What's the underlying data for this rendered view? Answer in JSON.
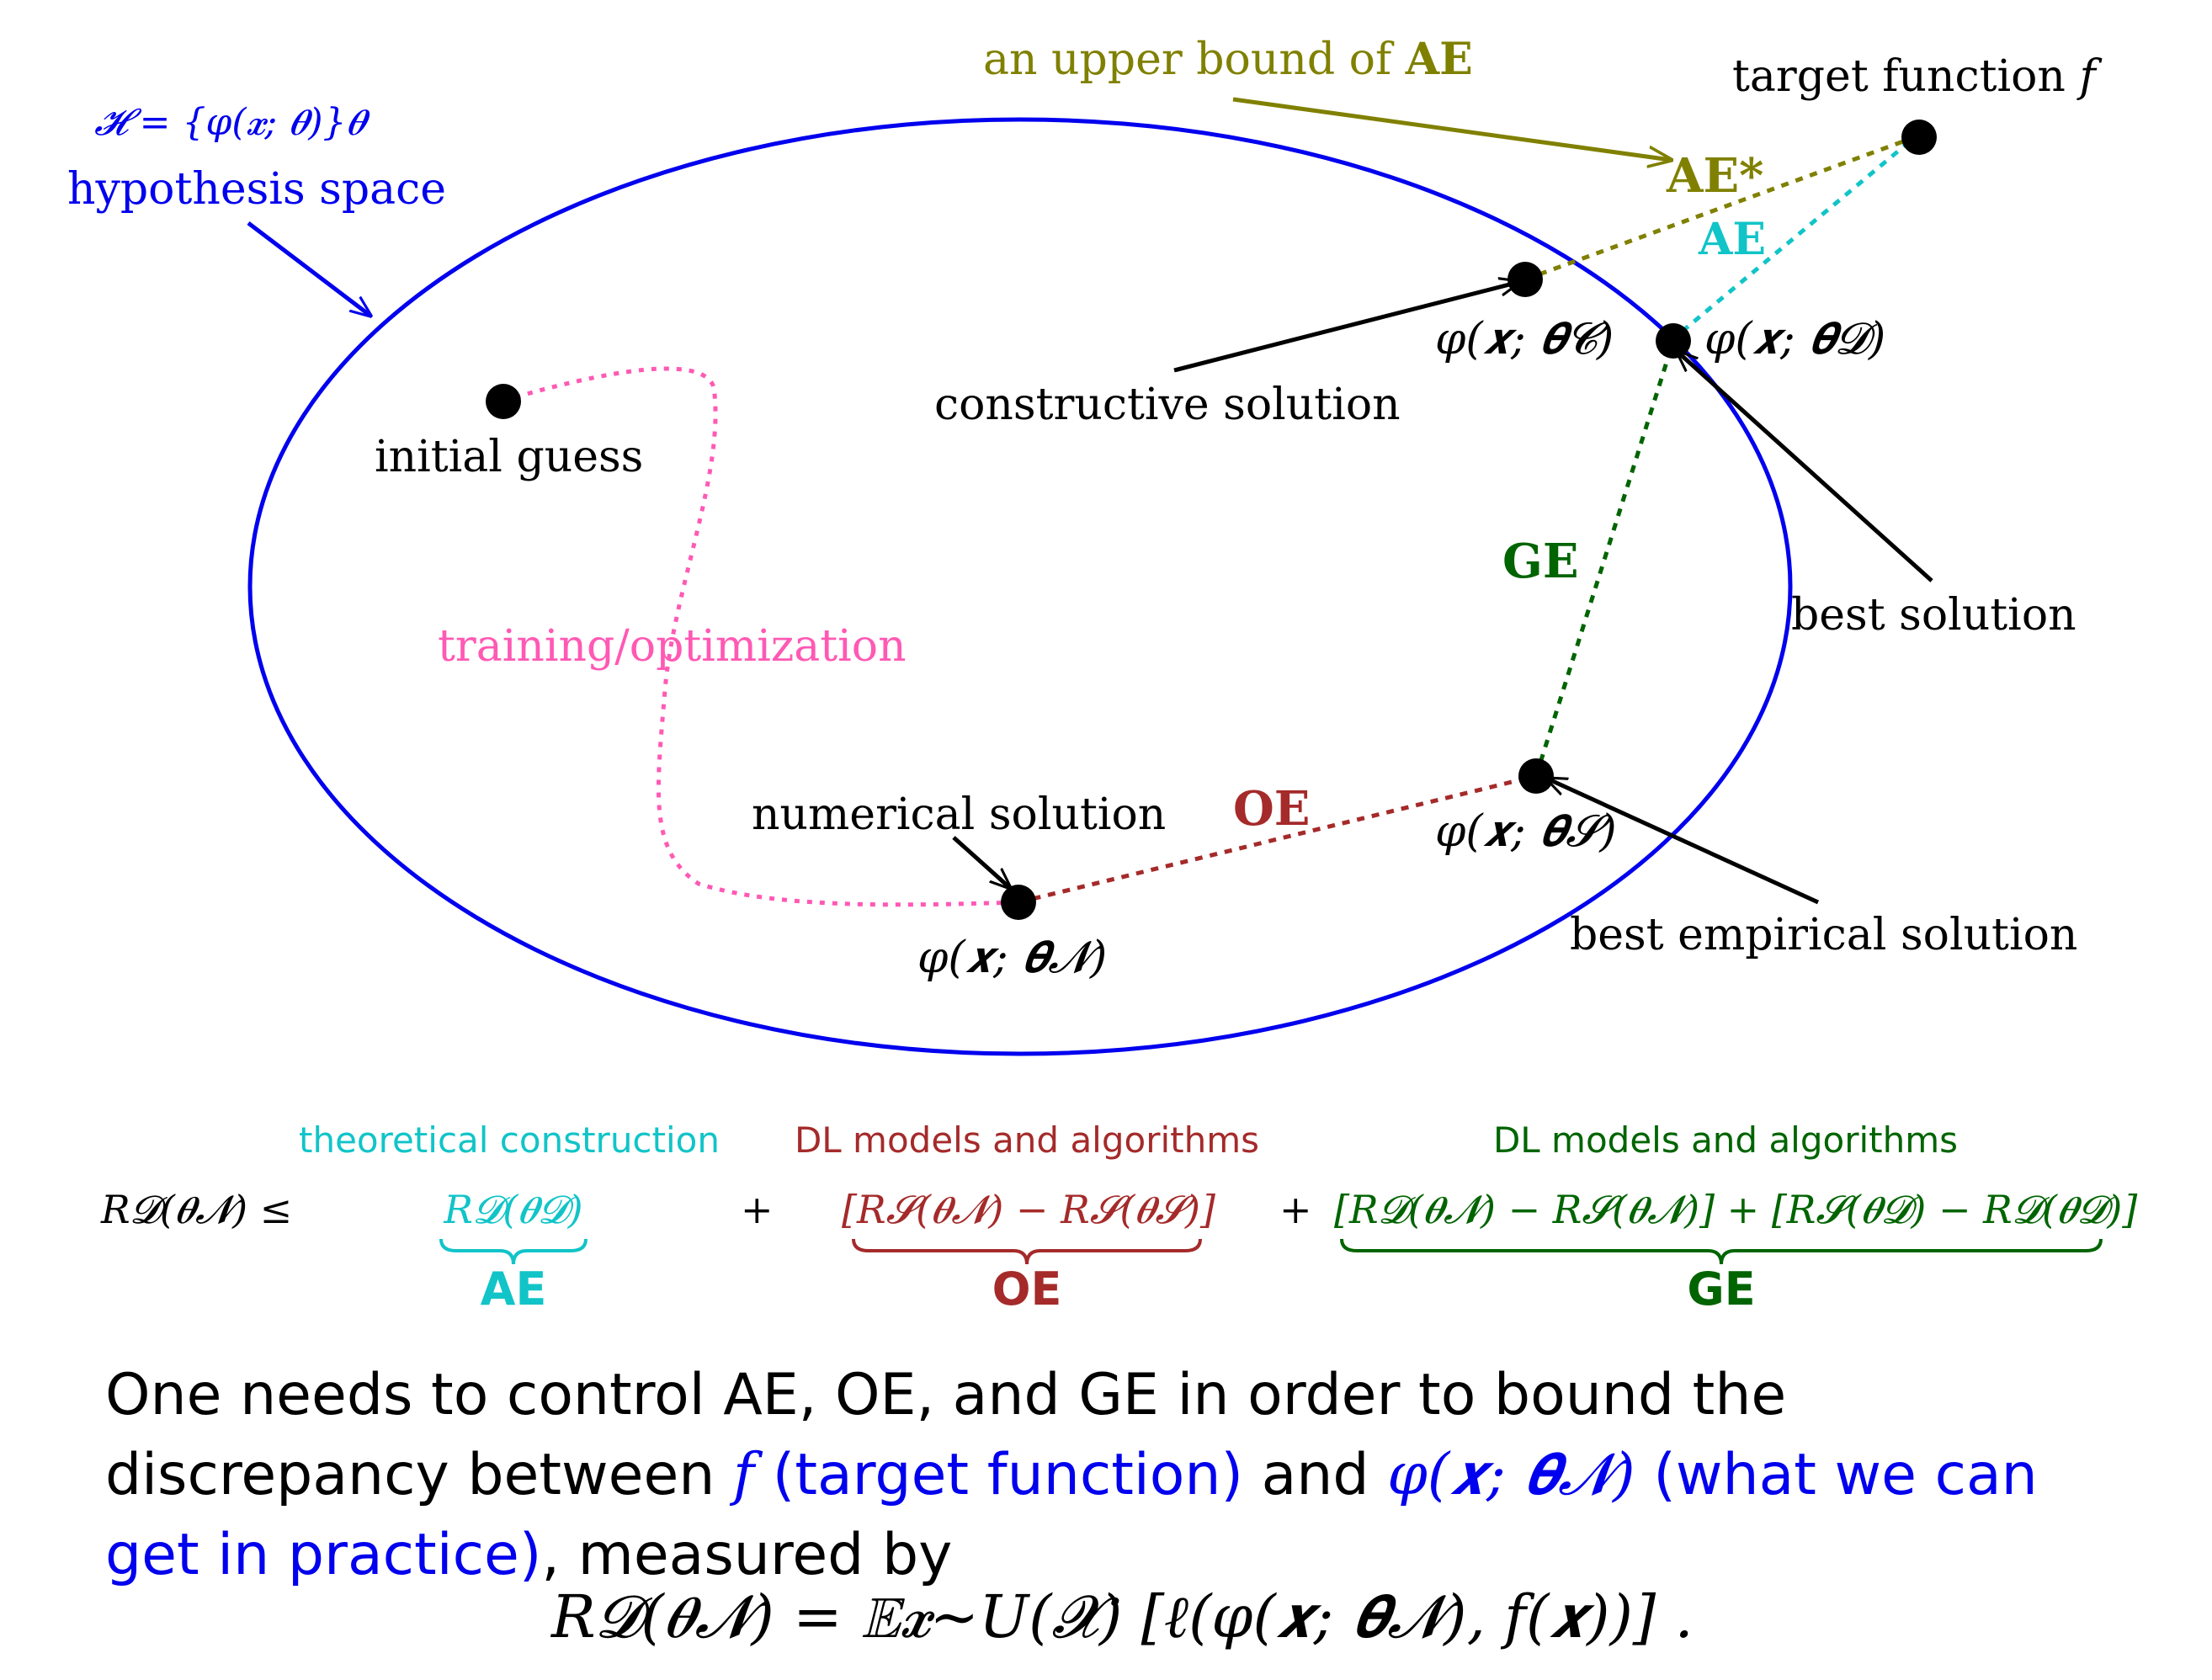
{
  "colors": {
    "blue": "#0000ee",
    "olive": "#808000",
    "cyan": "#11c4c8",
    "pink": "#ff59b4",
    "darkred": "#a52a2a",
    "darkgreen": "#006400",
    "black": "#000000"
  },
  "diagram": {
    "hyp_set": "𝓗 = {φ(𝒙; 𝜽)}𝜽",
    "hyp_label": "hypothesis space",
    "upper_bound_label": "an upper bound of ",
    "upper_bound_ae": "AE",
    "target_label": "target function ",
    "target_f": "f",
    "ae_star": "AE*",
    "ae": "AE",
    "ge": "GE",
    "oe": "OE",
    "phi_c": "φ(𝒙; 𝜽𝓒)",
    "phi_d": "φ(𝒙; 𝜽𝓓)",
    "phi_s": "φ(𝒙; 𝜽𝓢)",
    "phi_n": "φ(𝒙; 𝜽𝓝)",
    "constructive": "constructive solution",
    "best": "best solution",
    "initial": "initial guess",
    "training": "training/optimization",
    "numerical": "numerical solution",
    "best_empirical": "best empirical solution"
  },
  "decomposition": {
    "lhs": "R𝓓(𝜽𝓝) ≤",
    "plus1": "+",
    "plus2": "+",
    "cat_ae": "theoretical construction",
    "cat_oe": "DL models and algorithms",
    "cat_ge": "DL models and algorithms",
    "term_ae": "R𝓓(𝜽𝓓)",
    "term_oe": "[R𝓢(𝜽𝓝) − R𝓢(𝜽𝓢)]",
    "term_ge": "[R𝓓(𝜽𝓝) − R𝓢(𝜽𝓝)] + [R𝓢(𝜽𝓓) − R𝓓(𝜽𝓓)]",
    "ae": "AE",
    "oe": "OE",
    "ge": "GE"
  },
  "summary": {
    "part1": "One needs to control AE, OE, and GE in order to bound the discrepancy between ",
    "f": "f",
    "part2": " (target function)",
    "part3": " and ",
    "phi": "φ(𝒙; 𝜽𝓝)",
    "part4": " (what we can get in practice)",
    "part5": ", measured by",
    "formula": "R𝓓(𝜽𝓝) = 𝔼𝒙∼U(𝓧) [ℓ(φ(𝒙; 𝜽𝓝), f(𝒙))] ."
  }
}
